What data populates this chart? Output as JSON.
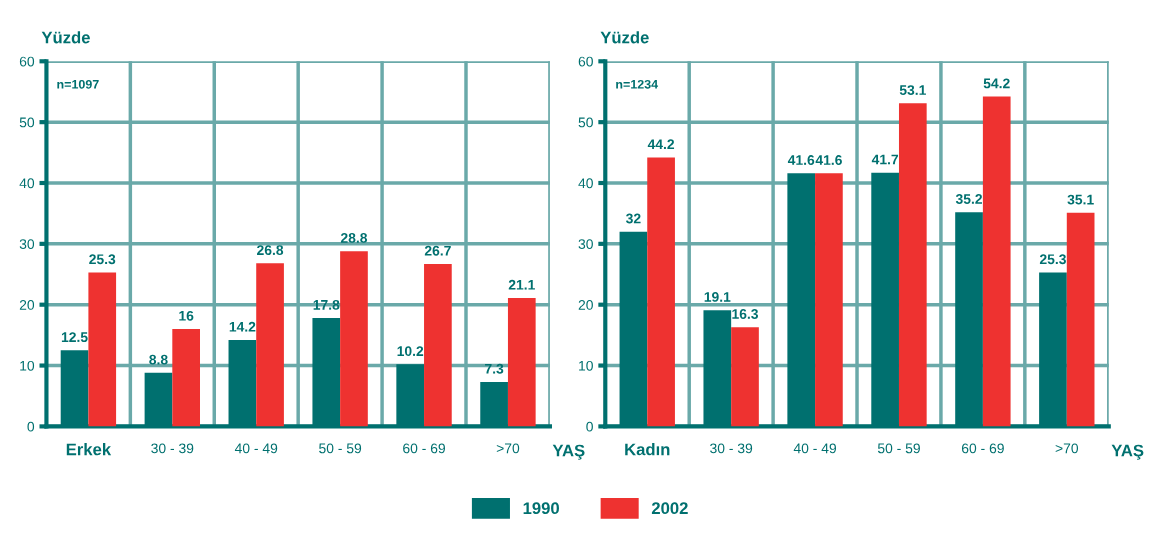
{
  "chart_data": [
    {
      "type": "bar",
      "categories": [
        "Erkek",
        "30 - 39",
        "40 - 49",
        "50 - 59",
        "60 - 69",
        ">70"
      ],
      "ylabel": "Yüzde",
      "xlabel": "YAŞ",
      "ylim": [
        0,
        60
      ],
      "yticks": [
        0,
        10,
        20,
        30,
        40,
        50,
        60
      ],
      "grid": true,
      "legend": "bottom",
      "data_labels": true,
      "annotations": [
        "n=1097"
      ],
      "series": [
        {
          "name": "1990",
          "color": "#00706f",
          "values": [
            12.5,
            8.8,
            14.2,
            17.8,
            10.2,
            7.3
          ]
        },
        {
          "name": "2002",
          "color": "#ee3230",
          "values": [
            25.3,
            16,
            26.8,
            28.8,
            26.7,
            21.1
          ]
        }
      ]
    },
    {
      "type": "bar",
      "categories": [
        "Kadın",
        "30 - 39",
        "40 - 49",
        "50 - 59",
        "60 - 69",
        ">70"
      ],
      "ylabel": "Yüzde",
      "xlabel": "YAŞ",
      "ylim": [
        0,
        60
      ],
      "yticks": [
        0,
        10,
        20,
        30,
        40,
        50,
        60
      ],
      "grid": true,
      "data_labels": true,
      "annotations": [
        "n=1234"
      ],
      "series": [
        {
          "name": "1990",
          "color": "#00706f",
          "values": [
            32,
            19.1,
            41.6,
            41.7,
            35.2,
            25.3
          ]
        },
        {
          "name": "2002",
          "color": "#ee3230",
          "values": [
            44.2,
            16.3,
            41.6,
            53.1,
            54.2,
            35.1
          ]
        }
      ]
    }
  ]
}
